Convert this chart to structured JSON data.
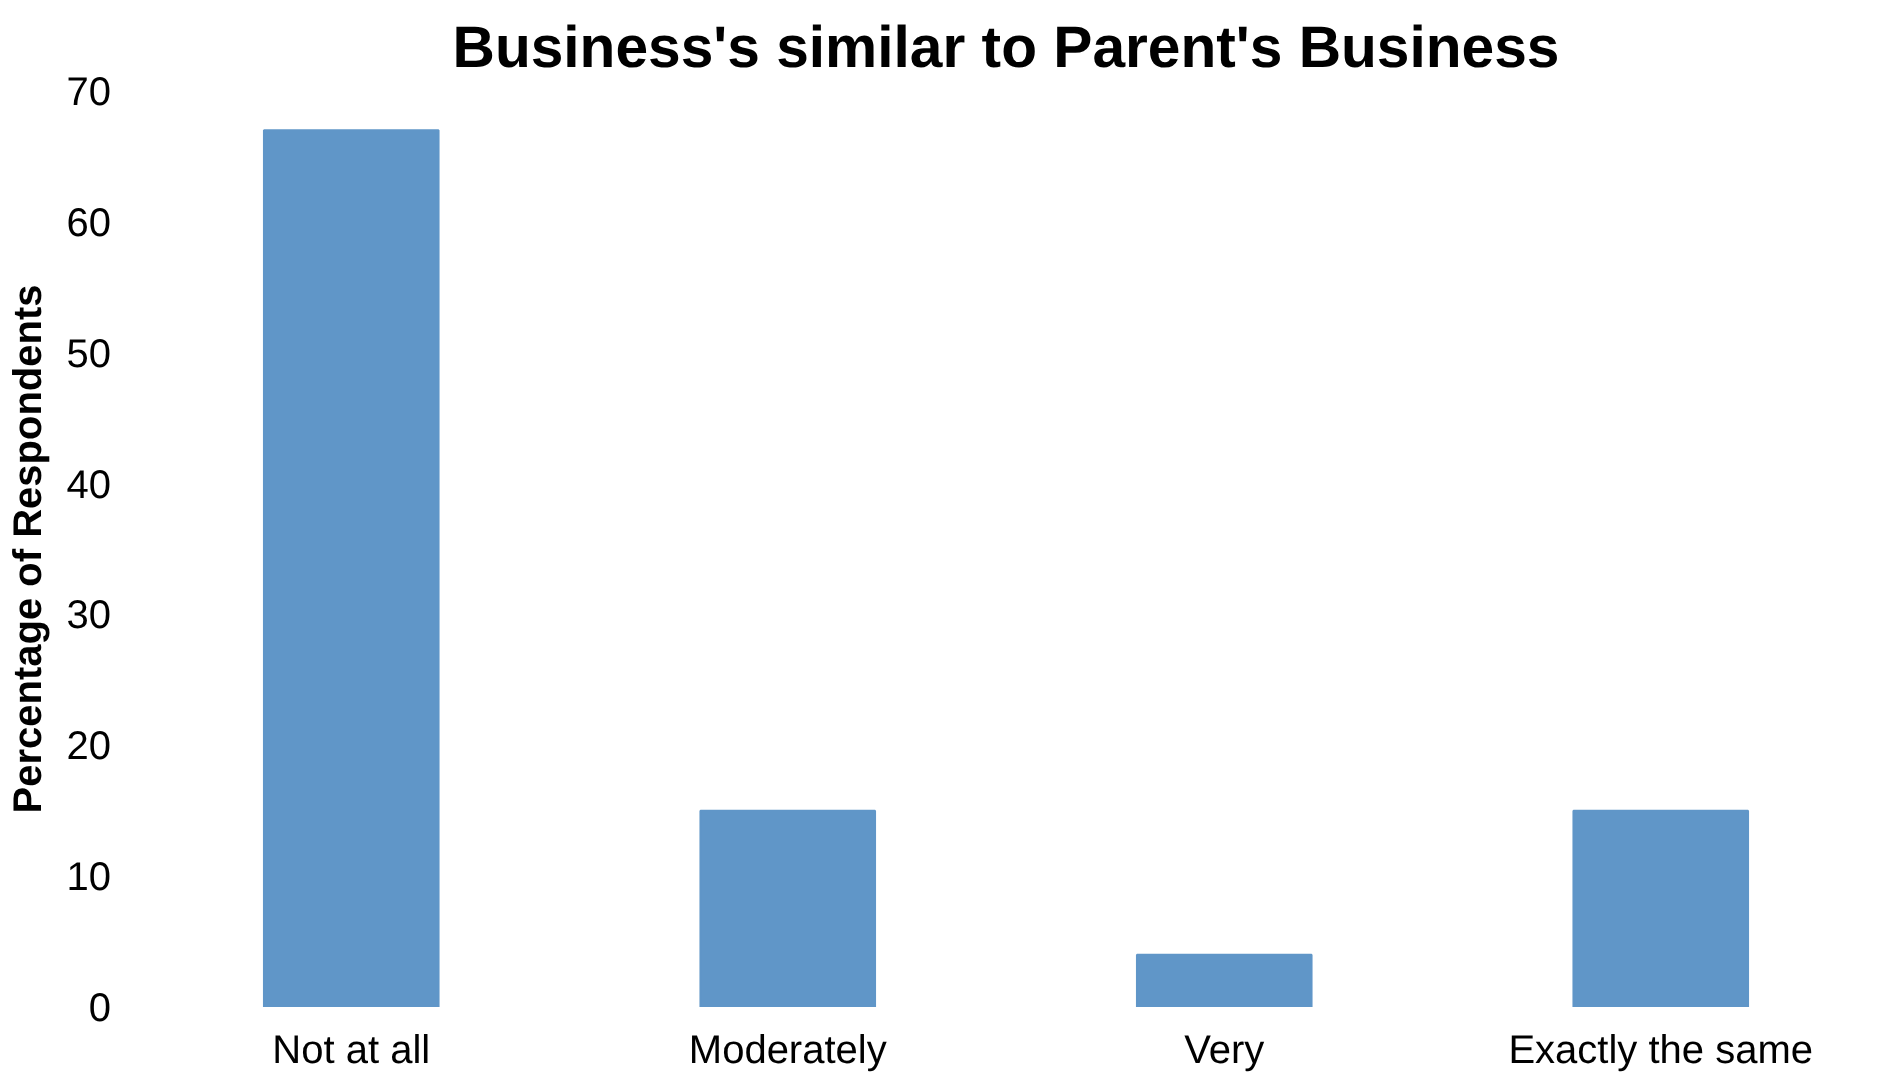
{
  "chart_data": {
    "type": "bar",
    "title": "Business's similar to Parent's Business",
    "ylabel": "Percentage of Respondents",
    "categories": [
      "Not at all",
      "Moderately",
      "Very",
      "Exactly the same"
    ],
    "values": [
      67,
      15,
      4,
      15
    ],
    "color": "#6096c8",
    "ylim": [
      0,
      70
    ],
    "yticks": [
      0,
      10,
      20,
      30,
      40,
      50,
      60,
      70
    ],
    "grid": false
  }
}
